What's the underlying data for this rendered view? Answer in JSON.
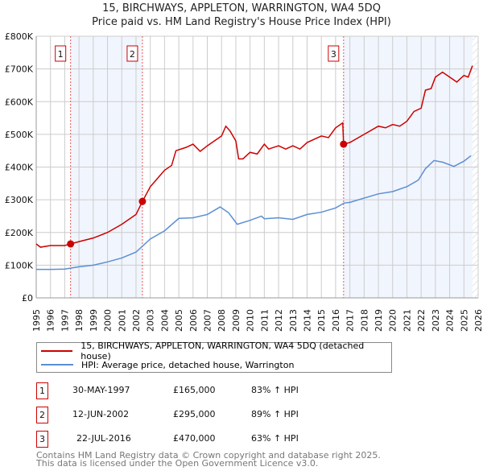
{
  "chart_data": {
    "type": "line",
    "title": "15, BIRCHWAYS, APPLETON, WARRINGTON, WA4 5DQ",
    "subtitle": "Price paid vs. HM Land Registry's House Price Index (HPI)",
    "xlim": [
      1995,
      2026
    ],
    "ylim": [
      0,
      800000
    ],
    "y_ticks": [
      {
        "v": 0,
        "label": "£0"
      },
      {
        "v": 100000,
        "label": "£100K"
      },
      {
        "v": 200000,
        "label": "£200K"
      },
      {
        "v": 300000,
        "label": "£300K"
      },
      {
        "v": 400000,
        "label": "£400K"
      },
      {
        "v": 500000,
        "label": "£500K"
      },
      {
        "v": 600000,
        "label": "£600K"
      },
      {
        "v": 700000,
        "label": "£700K"
      },
      {
        "v": 800000,
        "label": "£800K"
      }
    ],
    "x_ticks": [
      "1995",
      "1996",
      "1997",
      "1998",
      "1999",
      "2000",
      "2001",
      "2002",
      "2003",
      "2004",
      "2005",
      "2006",
      "2007",
      "2008",
      "2009",
      "2010",
      "2011",
      "2012",
      "2013",
      "2014",
      "2015",
      "2016",
      "2017",
      "2018",
      "2019",
      "2020",
      "2021",
      "2022",
      "2023",
      "2024",
      "2025",
      "2026"
    ],
    "grid": true,
    "series": [
      {
        "name": "15, BIRCHWAYS, APPLETON, WARRINGTON, WA4 5DQ (detached house)",
        "color": "#cc0000",
        "points": [
          [
            1995,
            165
          ],
          [
            1995.3,
            155
          ],
          [
            1996,
            160
          ],
          [
            1997,
            160
          ],
          [
            1997.41,
            165
          ],
          [
            1998,
            172
          ],
          [
            1999,
            183
          ],
          [
            2000,
            200
          ],
          [
            2001,
            225
          ],
          [
            2002,
            255
          ],
          [
            2002.45,
            295
          ],
          [
            2003,
            340
          ],
          [
            2003.5,
            365
          ],
          [
            2004,
            390
          ],
          [
            2004.5,
            405
          ],
          [
            2004.8,
            450
          ],
          [
            2005.5,
            460
          ],
          [
            2006,
            470
          ],
          [
            2006.5,
            448
          ],
          [
            2007,
            465
          ],
          [
            2007.5,
            480
          ],
          [
            2008,
            495
          ],
          [
            2008.3,
            525
          ],
          [
            2008.6,
            510
          ],
          [
            2009,
            480
          ],
          [
            2009.2,
            425
          ],
          [
            2009.5,
            425
          ],
          [
            2010,
            445
          ],
          [
            2010.5,
            440
          ],
          [
            2011,
            470
          ],
          [
            2011.3,
            455
          ],
          [
            2012,
            465
          ],
          [
            2012.5,
            455
          ],
          [
            2013,
            465
          ],
          [
            2013.5,
            455
          ],
          [
            2014,
            475
          ],
          [
            2015,
            495
          ],
          [
            2015.5,
            490
          ],
          [
            2016,
            520
          ],
          [
            2016.5,
            535
          ],
          [
            2016.56,
            470
          ],
          [
            2017,
            475
          ],
          [
            2018,
            500
          ],
          [
            2019,
            525
          ],
          [
            2019.5,
            520
          ],
          [
            2020,
            530
          ],
          [
            2020.5,
            525
          ],
          [
            2021,
            540
          ],
          [
            2021.5,
            570
          ],
          [
            2022,
            580
          ],
          [
            2022.3,
            635
          ],
          [
            2022.7,
            640
          ],
          [
            2023,
            675
          ],
          [
            2023.5,
            690
          ],
          [
            2024,
            675
          ],
          [
            2024.5,
            660
          ],
          [
            2025,
            680
          ],
          [
            2025.3,
            675
          ],
          [
            2025.6,
            710
          ]
        ]
      },
      {
        "name": "HPI: Average price, detached house, Warrington",
        "color": "#5b8fd4",
        "points": [
          [
            1995,
            87
          ],
          [
            1996,
            87
          ],
          [
            1997,
            88
          ],
          [
            1998,
            95
          ],
          [
            1999,
            100
          ],
          [
            2000,
            110
          ],
          [
            2001,
            122
          ],
          [
            2002,
            140
          ],
          [
            2003,
            180
          ],
          [
            2004,
            205
          ],
          [
            2005,
            243
          ],
          [
            2006,
            245
          ],
          [
            2007,
            255
          ],
          [
            2007.9,
            278
          ],
          [
            2008.5,
            260
          ],
          [
            2009.1,
            225
          ],
          [
            2010,
            237
          ],
          [
            2010.8,
            250
          ],
          [
            2011,
            242
          ],
          [
            2012,
            245
          ],
          [
            2013,
            240
          ],
          [
            2014,
            255
          ],
          [
            2015,
            262
          ],
          [
            2016,
            275
          ],
          [
            2016.6,
            290
          ],
          [
            2017,
            292
          ],
          [
            2018,
            305
          ],
          [
            2019,
            318
          ],
          [
            2020,
            325
          ],
          [
            2021,
            340
          ],
          [
            2021.8,
            360
          ],
          [
            2022.3,
            395
          ],
          [
            2022.9,
            420
          ],
          [
            2023.5,
            415
          ],
          [
            2024.3,
            402
          ],
          [
            2025,
            418
          ],
          [
            2025.5,
            435
          ]
        ]
      }
    ],
    "sales": [
      {
        "n": "1",
        "date": "30-MAY-1997",
        "x": 1997.41,
        "price": "£165,000",
        "value": 165,
        "hpi": "83% ↑ HPI"
      },
      {
        "n": "2",
        "date": "12-JUN-2002",
        "x": 2002.45,
        "price": "£295,000",
        "value": 295,
        "hpi": "89% ↑ HPI"
      },
      {
        "n": "3",
        "date": "22-JUL-2016",
        "x": 2016.56,
        "price": "£470,000",
        "value": 470,
        "hpi": "63% ↑ HPI"
      }
    ],
    "value_units": "thousands GBP",
    "legend_placement": "below"
  },
  "footer": [
    "Contains HM Land Registry data © Crown copyright and database right 2025.",
    "This data is licensed under the Open Government Licence v3.0."
  ]
}
